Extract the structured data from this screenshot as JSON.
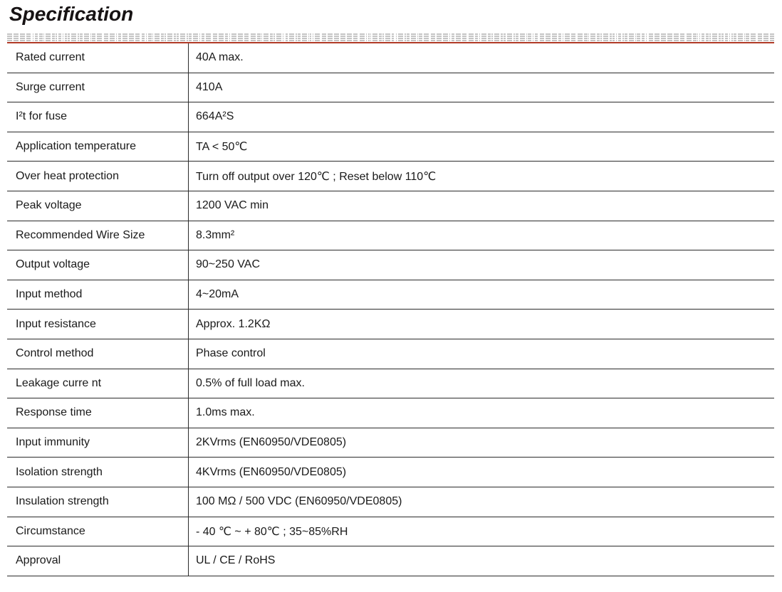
{
  "page": {
    "title": "Specification"
  },
  "colors": {
    "accent_red": "#B13A27",
    "band_gray": "#C4C4C4",
    "table_line": "#2B2B2B",
    "text": "#1A1A1A"
  },
  "table": {
    "columns": [
      "parameter",
      "value"
    ],
    "rows": [
      {
        "name": "Rated current",
        "value": "40A max."
      },
      {
        "name": "Surge current",
        "value": "410A"
      },
      {
        "name": "I²t for fuse",
        "value": "664A²S"
      },
      {
        "name": "Application temperature",
        "value": "TA < 50℃"
      },
      {
        "name": "Over heat protection",
        "value": "Turn off output over 120℃ ; Reset below 110℃"
      },
      {
        "name": "Peak voltage",
        "value": "1200 VAC min"
      },
      {
        "name": "Recommended Wire Size",
        "value": "8.3mm²"
      },
      {
        "name": "Output voltage",
        "value": "90~250 VAC"
      },
      {
        "name": "Input method",
        "value": "4~20mA"
      },
      {
        "name": "Input resistance",
        "value": "Approx. 1.2KΩ"
      },
      {
        "name": "Control method",
        "value": "Phase control"
      },
      {
        "name": "Leakage curre nt",
        "value": "0.5% of full load max."
      },
      {
        "name": "Response time",
        "value": "1.0ms max."
      },
      {
        "name": "Input immunity",
        "value": "2KVrms (EN60950/VDE0805)"
      },
      {
        "name": "Isolation strength",
        "value": "4KVrms (EN60950/VDE0805)"
      },
      {
        "name": "Insulation strength",
        "value": "100 MΩ / 500 VDC (EN60950/VDE0805)"
      },
      {
        "name": "Circumstance",
        "value": "- 40 ℃ ~ + 80℃ ; 35~85%RH"
      },
      {
        "name": "Approval",
        "value": "UL / CE / RoHS"
      }
    ]
  }
}
